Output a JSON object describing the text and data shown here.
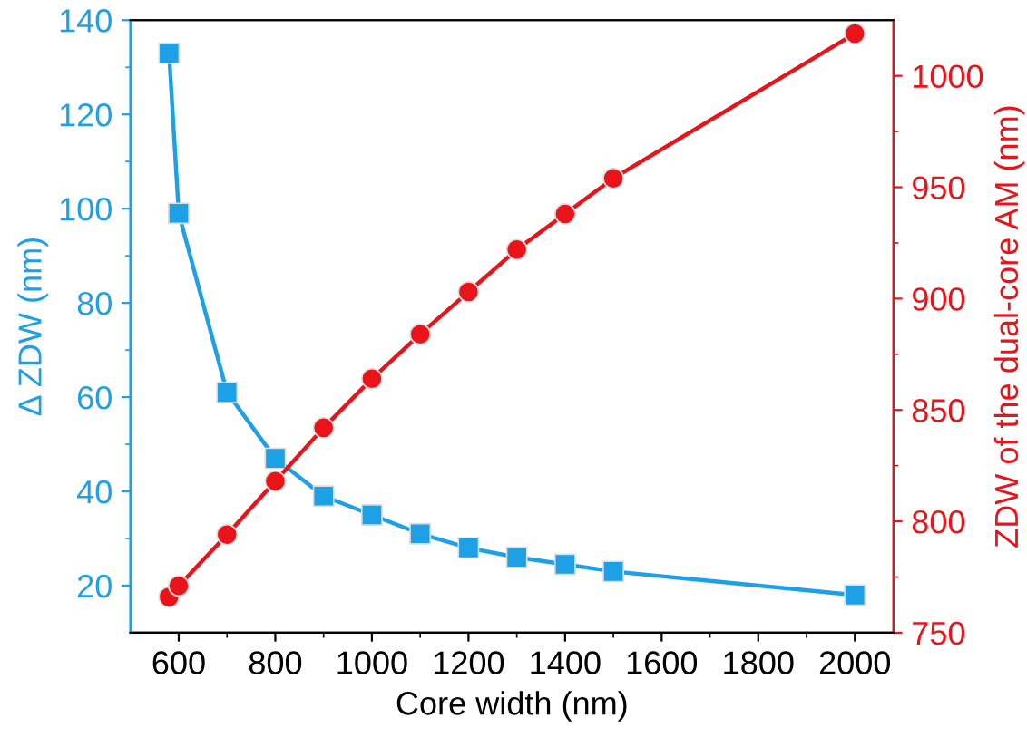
{
  "chart_data": {
    "type": "line",
    "xlabel": "Core width (nm)",
    "ylabel": "Δ ZDW (nm)",
    "y2label": "ZDW of the dual-core AM (nm)",
    "x": [
      580,
      600,
      700,
      800,
      900,
      1000,
      1100,
      1200,
      1300,
      1400,
      1500,
      2000
    ],
    "series": [
      {
        "color": "#1ea0e6",
        "marker": "square",
        "values": [
          133,
          99,
          61,
          47,
          39,
          35,
          31,
          28,
          26,
          24.5,
          23,
          18
        ]
      },
      {
        "color": "#e8141a",
        "marker": "circle",
        "axis": "y2",
        "values": [
          766,
          771,
          794,
          818,
          842,
          864,
          884,
          903,
          922,
          938,
          954,
          1019
        ]
      }
    ],
    "xlim": [
      500,
      2080
    ],
    "xticks": [
      600,
      800,
      1000,
      1200,
      1400,
      1600,
      1800,
      2000
    ],
    "ylim": [
      10,
      140
    ],
    "yticks": [
      20,
      40,
      60,
      80,
      100,
      120,
      140
    ],
    "y2lim": [
      750,
      1025
    ],
    "y2ticks": [
      750,
      800,
      850,
      900,
      950,
      1000
    ],
    "grid": false,
    "legend": false,
    "line_style": "solid"
  }
}
